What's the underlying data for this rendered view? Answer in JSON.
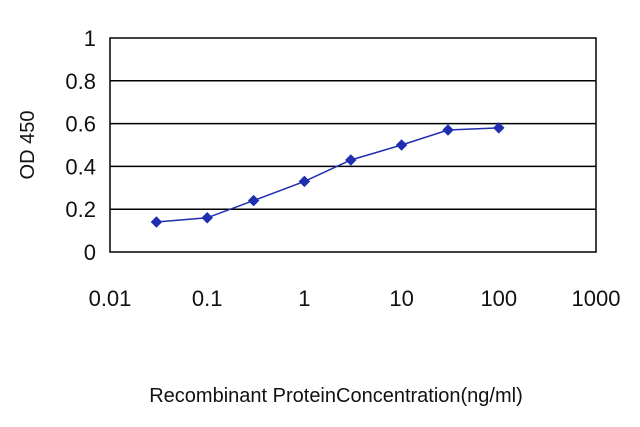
{
  "chart_data": {
    "type": "line",
    "title": "",
    "xlabel": "Recombinant ProteinConcentration(ng/ml)",
    "ylabel": "OD 450",
    "x_scale": "log",
    "xlim": [
      0.01,
      1000
    ],
    "ylim": [
      0,
      1
    ],
    "x_tick_labels": [
      "0.01",
      "0.1",
      "1",
      "10",
      "100",
      "1000"
    ],
    "x_tick_values": [
      0.01,
      0.1,
      1,
      10,
      100,
      1000
    ],
    "y_tick_labels": [
      "0",
      "0.2",
      "0.4",
      "0.6",
      "0.8",
      "1"
    ],
    "y_tick_values": [
      0,
      0.2,
      0.4,
      0.6,
      0.8,
      1
    ],
    "grid": "horizontal",
    "legend": "none",
    "series": [
      {
        "x": [
          0.03,
          0.1,
          0.3,
          1,
          3,
          10,
          30,
          100
        ],
        "y": [
          0.14,
          0.16,
          0.24,
          0.33,
          0.43,
          0.5,
          0.57,
          0.58
        ],
        "color": "#1f2fb0"
      }
    ]
  }
}
